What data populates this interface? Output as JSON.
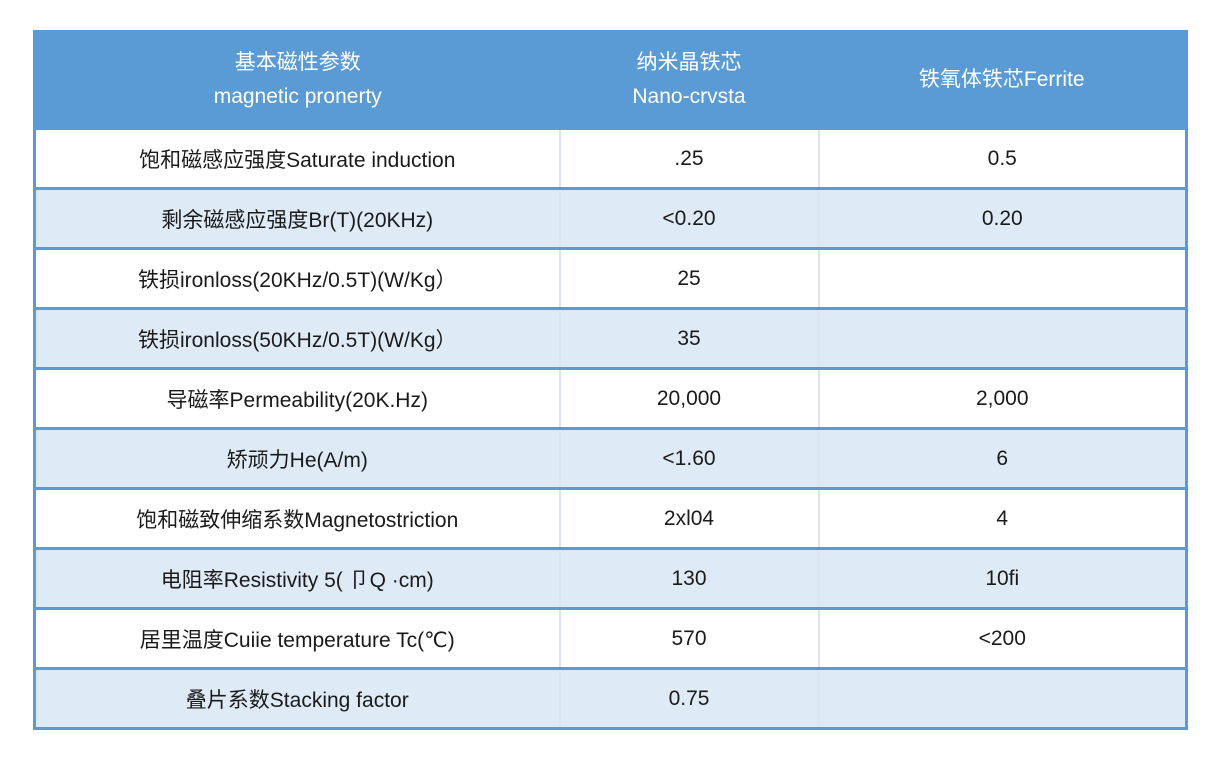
{
  "table": {
    "header": {
      "param_line1": "基本磁性参数",
      "param_line2": "magnetic pronerty",
      "nano_line1": "纳米晶铁芯",
      "nano_line2": "Nano-crvsta",
      "ferrite": "铁氧体铁芯Ferrite"
    },
    "rows": [
      {
        "param": "饱和磁感应强度Saturate induction",
        "nano": ".25",
        "ferrite": "0.5"
      },
      {
        "param": "剩余磁感应强度Br(T)(20KHz)",
        "nano": "<0.20",
        "ferrite": "0.20"
      },
      {
        "param": "铁损ironloss(20KHz/0.5T)(W/Kg）",
        "nano": "25",
        "ferrite": ""
      },
      {
        "param": "铁损ironloss(50KHz/0.5T)(W/Kg）",
        "nano": "35",
        "ferrite": ""
      },
      {
        "param": "导磁率Permeability(20K.Hz)",
        "nano": "20,000",
        "ferrite": "2,000"
      },
      {
        "param": "矫顽力He(A/m)",
        "nano": "<1.60",
        "ferrite": "6"
      },
      {
        "param": "饱和磁致伸缩系数Magnetostriction",
        "nano": "2xl04",
        "ferrite": "4"
      },
      {
        "param": "电阻率Resistivity 5( 卩Q ·cm)",
        "nano": "130",
        "ferrite": "10fi"
      },
      {
        "param": "居里温度Cuiie temperature Tc(℃)",
        "nano": "570",
        "ferrite": "<200"
      },
      {
        "param": "叠片系数Stacking factor",
        "nano": "0.75",
        "ferrite": ""
      }
    ],
    "colors": {
      "header_bg": "#5B9BD5",
      "banded_row_bg": "#DEEBF7",
      "row_separator": "#5B9BD5",
      "column_divider": "#D9E5F2",
      "header_text": "#FFFFFF",
      "body_text": "#1A1A1A"
    }
  }
}
